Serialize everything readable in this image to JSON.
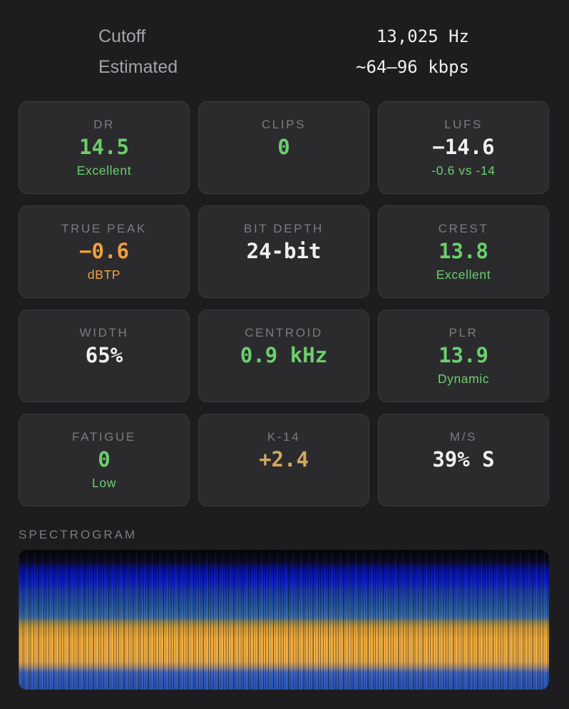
{
  "info": [
    {
      "label": "Cutoff",
      "value": "13,025 Hz"
    },
    {
      "label": "Estimated",
      "value": "~64–96 kbps"
    }
  ],
  "colors": {
    "green": "#6ccf6c",
    "orange": "#f0a03e",
    "gold": "#d2a860",
    "white": "#f0f0f2"
  },
  "metrics": [
    {
      "label": "DR",
      "value": "14.5",
      "sub": "Excellent",
      "value_color": "green",
      "sub_color": "green"
    },
    {
      "label": "CLIPS",
      "value": "0",
      "sub": "",
      "value_color": "green",
      "sub_color": "green"
    },
    {
      "label": "LUFS",
      "value": "−14.6",
      "sub": "-0.6 vs -14",
      "value_color": "white",
      "sub_color": "green"
    },
    {
      "label": "TRUE PEAK",
      "value": "−0.6",
      "sub": "dBTP",
      "value_color": "orange",
      "sub_color": "orange"
    },
    {
      "label": "BIT DEPTH",
      "value": "24-bit",
      "sub": "",
      "value_color": "white",
      "sub_color": "green"
    },
    {
      "label": "CREST",
      "value": "13.8",
      "sub": "Excellent",
      "value_color": "green",
      "sub_color": "green"
    },
    {
      "label": "WIDTH",
      "value": "65%",
      "sub": "",
      "value_color": "white",
      "sub_color": "green"
    },
    {
      "label": "CENTROID",
      "value": "0.9 kHz",
      "sub": "",
      "value_color": "green",
      "sub_color": "green"
    },
    {
      "label": "PLR",
      "value": "13.9",
      "sub": "Dynamic",
      "value_color": "green",
      "sub_color": "green"
    },
    {
      "label": "FATIGUE",
      "value": "0",
      "sub": "Low",
      "value_color": "green",
      "sub_color": "green"
    },
    {
      "label": "K-14",
      "value": "+2.4",
      "sub": "",
      "value_color": "gold",
      "sub_color": "gold"
    },
    {
      "label": "M/S",
      "value": "39% S",
      "sub": "",
      "value_color": "white",
      "sub_color": "green"
    }
  ],
  "spectrogram": {
    "title": "SPECTROGRAM"
  }
}
